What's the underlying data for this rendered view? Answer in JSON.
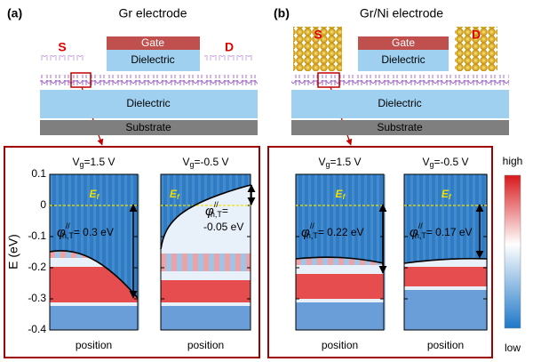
{
  "panel_a": {
    "label": "(a)",
    "title": "Gr electrode",
    "gate": "Gate",
    "top_dielectric": "Dielectric",
    "source": "S",
    "drain": "D",
    "dielectric": "Dielectric",
    "substrate": "Substrate"
  },
  "panel_b": {
    "label": "(b)",
    "title": "Gr/Ni electrode",
    "gate": "Gate",
    "top_dielectric": "Dielectric",
    "source": "S",
    "drain": "D",
    "dielectric": "Dielectric",
    "substrate": "Substrate"
  },
  "chart_data": {
    "type": "heatmap",
    "y_label": "E (eV)",
    "ylim": [
      -0.4,
      0.1
    ],
    "yticks": [
      0.1,
      0,
      -0.1,
      -0.2,
      -0.3,
      -0.4
    ],
    "fermi_level": 0,
    "plots": [
      {
        "title": {
          "v": "V",
          "sub": "g",
          "rest": "=1.5 V"
        },
        "fermi_label": {
          "e": "E",
          "sub": "f"
        },
        "barrier": {
          "phi": "φ",
          "sup": "//",
          "sub": "h,T",
          "rest": "= 0.3 eV"
        },
        "x_label": "position"
      },
      {
        "title": {
          "v": "V",
          "sub": "g",
          "rest": "=-0.5 V"
        },
        "fermi_label": {
          "e": "E",
          "sub": "f"
        },
        "barrier": {
          "phi": "φ",
          "sup": "//",
          "sub": "h,T",
          "rest": "=",
          "rest2": "-0.05 eV"
        },
        "x_label": "position"
      },
      {
        "title": {
          "v": "V",
          "sub": "g",
          "rest": "=1.5 V"
        },
        "fermi_label": {
          "e": "E",
          "sub": "f"
        },
        "barrier": {
          "phi": "φ",
          "sup": "//",
          "sub": "h,T",
          "rest": "= 0.22 eV"
        },
        "x_label": "position"
      },
      {
        "title": {
          "v": "V",
          "sub": "g",
          "rest": "=-0.5 V"
        },
        "fermi_label": {
          "e": "E",
          "sub": "f"
        },
        "barrier": {
          "phi": "φ",
          "sup": "//",
          "sub": "h,T",
          "rest": "= 0.17 eV"
        },
        "x_label": "position"
      }
    ],
    "colorbar": {
      "high": "high",
      "low": "low"
    }
  }
}
